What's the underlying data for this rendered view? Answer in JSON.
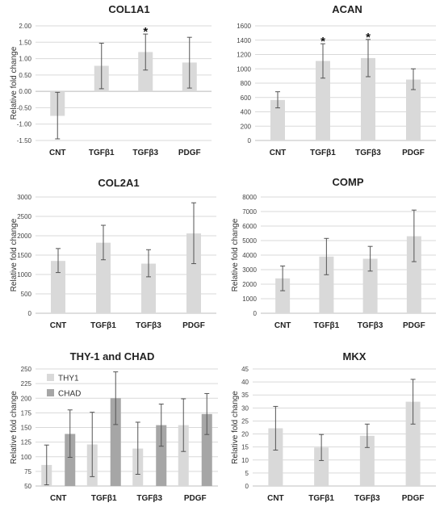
{
  "chart_data": [
    {
      "type": "bar",
      "title": "COL1A1",
      "ylabel": "Relative fold change",
      "categories": [
        "CNT",
        "TGFβ1",
        "TGFβ3",
        "PDGF"
      ],
      "ylim": [
        -1.5,
        2.0
      ],
      "yticks": [
        "2.00",
        "1.50",
        "1.00",
        "0.50",
        "0.00",
        "-0.50",
        "-1.00",
        "-1.50"
      ],
      "ytick_values": [
        2.0,
        1.5,
        1.0,
        0.5,
        0.0,
        -0.5,
        -1.0,
        -1.5
      ],
      "series": [
        {
          "color": "#d9d9d9",
          "values": [
            -0.75,
            0.78,
            1.2,
            0.88
          ],
          "err_low": [
            -1.45,
            0.08,
            0.65,
            0.1
          ],
          "err_high": [
            -0.03,
            1.47,
            1.75,
            1.65
          ]
        }
      ],
      "annotations": [
        "",
        "",
        "*",
        ""
      ]
    },
    {
      "type": "bar",
      "title": "ACAN",
      "ylabel": "",
      "categories": [
        "CNT",
        "TGFβ1",
        "TGFβ3",
        "PDGF"
      ],
      "ylim": [
        0,
        1600
      ],
      "yticks": [
        "1600",
        "1400",
        "1200",
        "1000",
        "800",
        "600",
        "400",
        "200",
        "0"
      ],
      "ytick_values": [
        1600,
        1400,
        1200,
        1000,
        800,
        600,
        400,
        200,
        0
      ],
      "series": [
        {
          "color": "#d9d9d9",
          "values": [
            565,
            1110,
            1150,
            850
          ],
          "err_low": [
            455,
            870,
            890,
            710
          ],
          "err_high": [
            680,
            1350,
            1410,
            1000
          ]
        }
      ],
      "annotations": [
        "",
        "*",
        "*",
        ""
      ]
    },
    {
      "type": "bar",
      "title": "COL2A1",
      "ylabel": "Relative fold change",
      "categories": [
        "CNT",
        "TGFβ1",
        "TGFβ3",
        "PDGF"
      ],
      "ylim": [
        0,
        3000
      ],
      "yticks": [
        "3000",
        "2500",
        "2000",
        "1500",
        "1000",
        "500",
        "0"
      ],
      "ytick_values": [
        3000,
        2500,
        2000,
        1500,
        1000,
        500,
        0
      ],
      "series": [
        {
          "color": "#d9d9d9",
          "values": [
            1350,
            1820,
            1280,
            2060
          ],
          "err_low": [
            1050,
            1380,
            940,
            1280
          ],
          "err_high": [
            1670,
            2270,
            1640,
            2850
          ]
        }
      ],
      "annotations": [
        "",
        "",
        "",
        ""
      ]
    },
    {
      "type": "bar",
      "title": "COMP",
      "ylabel": "Relative fold change",
      "categories": [
        "CNT",
        "TGFβ1",
        "TGFβ3",
        "PDGF"
      ],
      "ylim": [
        0,
        8000
      ],
      "yticks": [
        "8000",
        "7000",
        "6000",
        "5000",
        "4000",
        "3000",
        "2000",
        "1000",
        "0"
      ],
      "ytick_values": [
        8000,
        7000,
        6000,
        5000,
        4000,
        3000,
        2000,
        1000,
        0
      ],
      "series": [
        {
          "color": "#d9d9d9",
          "values": [
            2400,
            3900,
            3750,
            5300
          ],
          "err_low": [
            1550,
            2650,
            2900,
            3550
          ],
          "err_high": [
            3250,
            5150,
            4600,
            7100
          ]
        }
      ],
      "annotations": [
        "",
        "",
        "",
        ""
      ]
    },
    {
      "type": "bar",
      "title": "THY-1 and CHAD",
      "ylabel": "Relative fold change",
      "categories": [
        "CNT",
        "TGFβ1",
        "TGFβ3",
        "PDGF"
      ],
      "ylim": [
        50,
        250
      ],
      "yticks": [
        "250",
        "225",
        "200",
        "175",
        "150",
        "125",
        "100",
        "75",
        "50"
      ],
      "ytick_values": [
        250,
        225,
        200,
        175,
        150,
        125,
        100,
        75,
        50
      ],
      "legend": "top-left",
      "series": [
        {
          "name": "THY1",
          "color": "#d9d9d9",
          "values": [
            86,
            121,
            114,
            154
          ],
          "err_low": [
            52,
            66,
            70,
            109
          ],
          "err_high": [
            120,
            176,
            159,
            199
          ]
        },
        {
          "name": "CHAD",
          "color": "#a6a6a6",
          "values": [
            139,
            200,
            154,
            173
          ],
          "err_low": [
            99,
            155,
            118,
            138
          ],
          "err_high": [
            180,
            245,
            190,
            208
          ]
        }
      ],
      "annotations": [
        "",
        "",
        "",
        ""
      ]
    },
    {
      "type": "bar",
      "title": "MKX",
      "ylabel": "Relative fold change",
      "categories": [
        "CNT",
        "TGFβ1",
        "TGFβ3",
        "PDGF"
      ],
      "ylim": [
        0,
        45
      ],
      "yticks": [
        "45",
        "40",
        "35",
        "30",
        "25",
        "20",
        "15",
        "10",
        "5",
        "0"
      ],
      "ytick_values": [
        45,
        40,
        35,
        30,
        25,
        20,
        15,
        10,
        5,
        0
      ],
      "series": [
        {
          "color": "#d9d9d9",
          "values": [
            22.2,
            14.8,
            19.3,
            32.4
          ],
          "err_low": [
            13.8,
            9.8,
            14.8,
            23.8
          ],
          "err_high": [
            30.6,
            19.8,
            23.8,
            41.0
          ]
        }
      ],
      "annotations": [
        "",
        "",
        "",
        ""
      ]
    }
  ]
}
